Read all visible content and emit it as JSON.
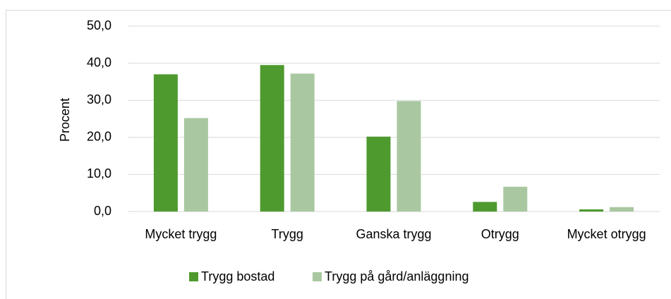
{
  "chart_data": {
    "type": "bar",
    "y_label": "Procent",
    "categories": [
      "Mycket trygg",
      "Trygg",
      "Ganska trygg",
      "Otrygg",
      "Mycket otrygg"
    ],
    "series": [
      {
        "name": "Trygg bostad",
        "color": "#4e9a2f",
        "values": [
          37.0,
          39.5,
          20.2,
          2.6,
          0.6
        ]
      },
      {
        "name": "Trygg på gård/anläggning",
        "color": "#a9c8a1",
        "values": [
          25.2,
          37.2,
          29.8,
          6.7,
          1.2
        ]
      }
    ],
    "ylim": [
      0,
      50
    ],
    "yticks": [
      {
        "value": 0,
        "label": "0,0"
      },
      {
        "value": 10,
        "label": "10,0"
      },
      {
        "value": 20,
        "label": "20,0"
      },
      {
        "value": 30,
        "label": "30,0"
      },
      {
        "value": 40,
        "label": "40,0"
      },
      {
        "value": 50,
        "label": "50,0"
      }
    ],
    "grid": true,
    "legend": "bottom"
  }
}
